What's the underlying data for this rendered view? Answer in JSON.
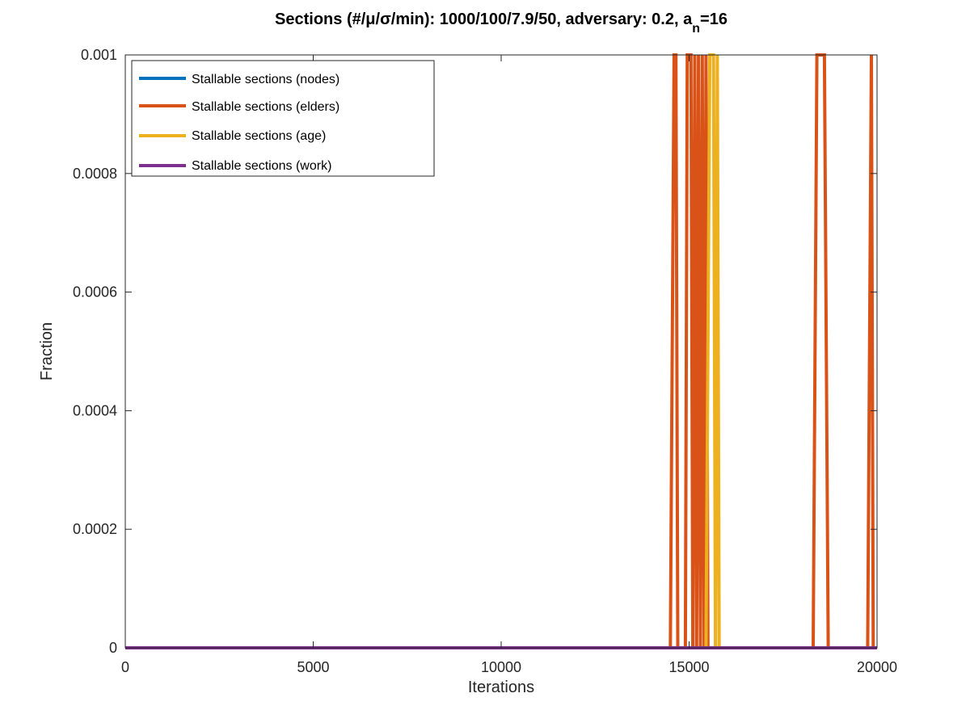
{
  "chart_data": {
    "type": "line",
    "title": {
      "main": "Sections (#/μ/σ/min): 1000/100/7.9/50, adversary: 0.2, a",
      "subscript": "n",
      "tail": "=16"
    },
    "xlabel": "Iterations",
    "ylabel": "Fraction",
    "xlim": [
      0,
      20000
    ],
    "ylim": [
      0,
      0.001
    ],
    "x_ticks": [
      0,
      5000,
      10000,
      15000,
      20000
    ],
    "x_tick_labels": [
      "0",
      "5000",
      "10000",
      "15000",
      "20000"
    ],
    "y_ticks": [
      0,
      0.0002,
      0.0004,
      0.0006,
      0.0008,
      0.001
    ],
    "y_tick_labels": [
      "0",
      "0.0002",
      "0.0004",
      "0.0006",
      "0.0008",
      "0.001"
    ],
    "grid": false,
    "legend_position": "top-left",
    "series": [
      {
        "name": "Stallable sections (nodes)",
        "color": "#0072BD",
        "points": [
          [
            0,
            0
          ],
          [
            20000,
            0
          ]
        ]
      },
      {
        "name": "Stallable sections (elders)",
        "color": "#D95319",
        "points": [
          [
            0,
            0
          ],
          [
            14500,
            0
          ],
          [
            14600,
            0.001
          ],
          [
            14650,
            0.001
          ],
          [
            14700,
            0
          ],
          [
            14900,
            0
          ],
          [
            14950,
            0.001
          ],
          [
            15050,
            0.001
          ],
          [
            15100,
            0
          ],
          [
            15150,
            0.001
          ],
          [
            15200,
            0
          ],
          [
            15250,
            0.001
          ],
          [
            15300,
            0
          ],
          [
            15350,
            0.001
          ],
          [
            15400,
            0
          ],
          [
            15450,
            0.001
          ],
          [
            15500,
            0
          ],
          [
            18300,
            0
          ],
          [
            18400,
            0.001
          ],
          [
            18600,
            0.001
          ],
          [
            18700,
            0
          ],
          [
            19750,
            0
          ],
          [
            19850,
            0.001
          ],
          [
            19900,
            0
          ],
          [
            20000,
            0
          ]
        ]
      },
      {
        "name": "Stallable sections (age)",
        "color": "#EDB120",
        "points": [
          [
            0,
            0
          ],
          [
            15450,
            0
          ],
          [
            15550,
            0.001
          ],
          [
            15650,
            0.001
          ],
          [
            15700,
            0
          ],
          [
            15750,
            0.001
          ],
          [
            15800,
            0
          ],
          [
            20000,
            0
          ]
        ]
      },
      {
        "name": "Stallable sections (work)",
        "color": "#7E2F8E",
        "points": [
          [
            0,
            0
          ],
          [
            20000,
            0
          ]
        ]
      }
    ]
  }
}
